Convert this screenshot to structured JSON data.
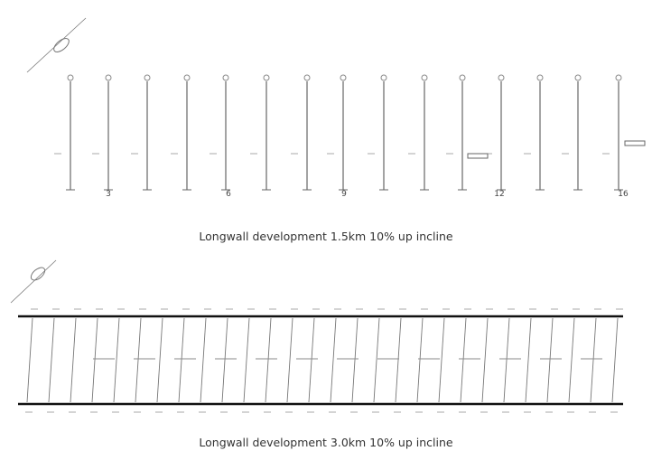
{
  "figures": [
    {
      "caption": "Longwall development 1.5km 10% up incline",
      "panel_numbers": [
        "3",
        "6",
        "9",
        "12",
        "16"
      ]
    },
    {
      "caption": "Longwall development 3.0km 10% up incline"
    }
  ]
}
